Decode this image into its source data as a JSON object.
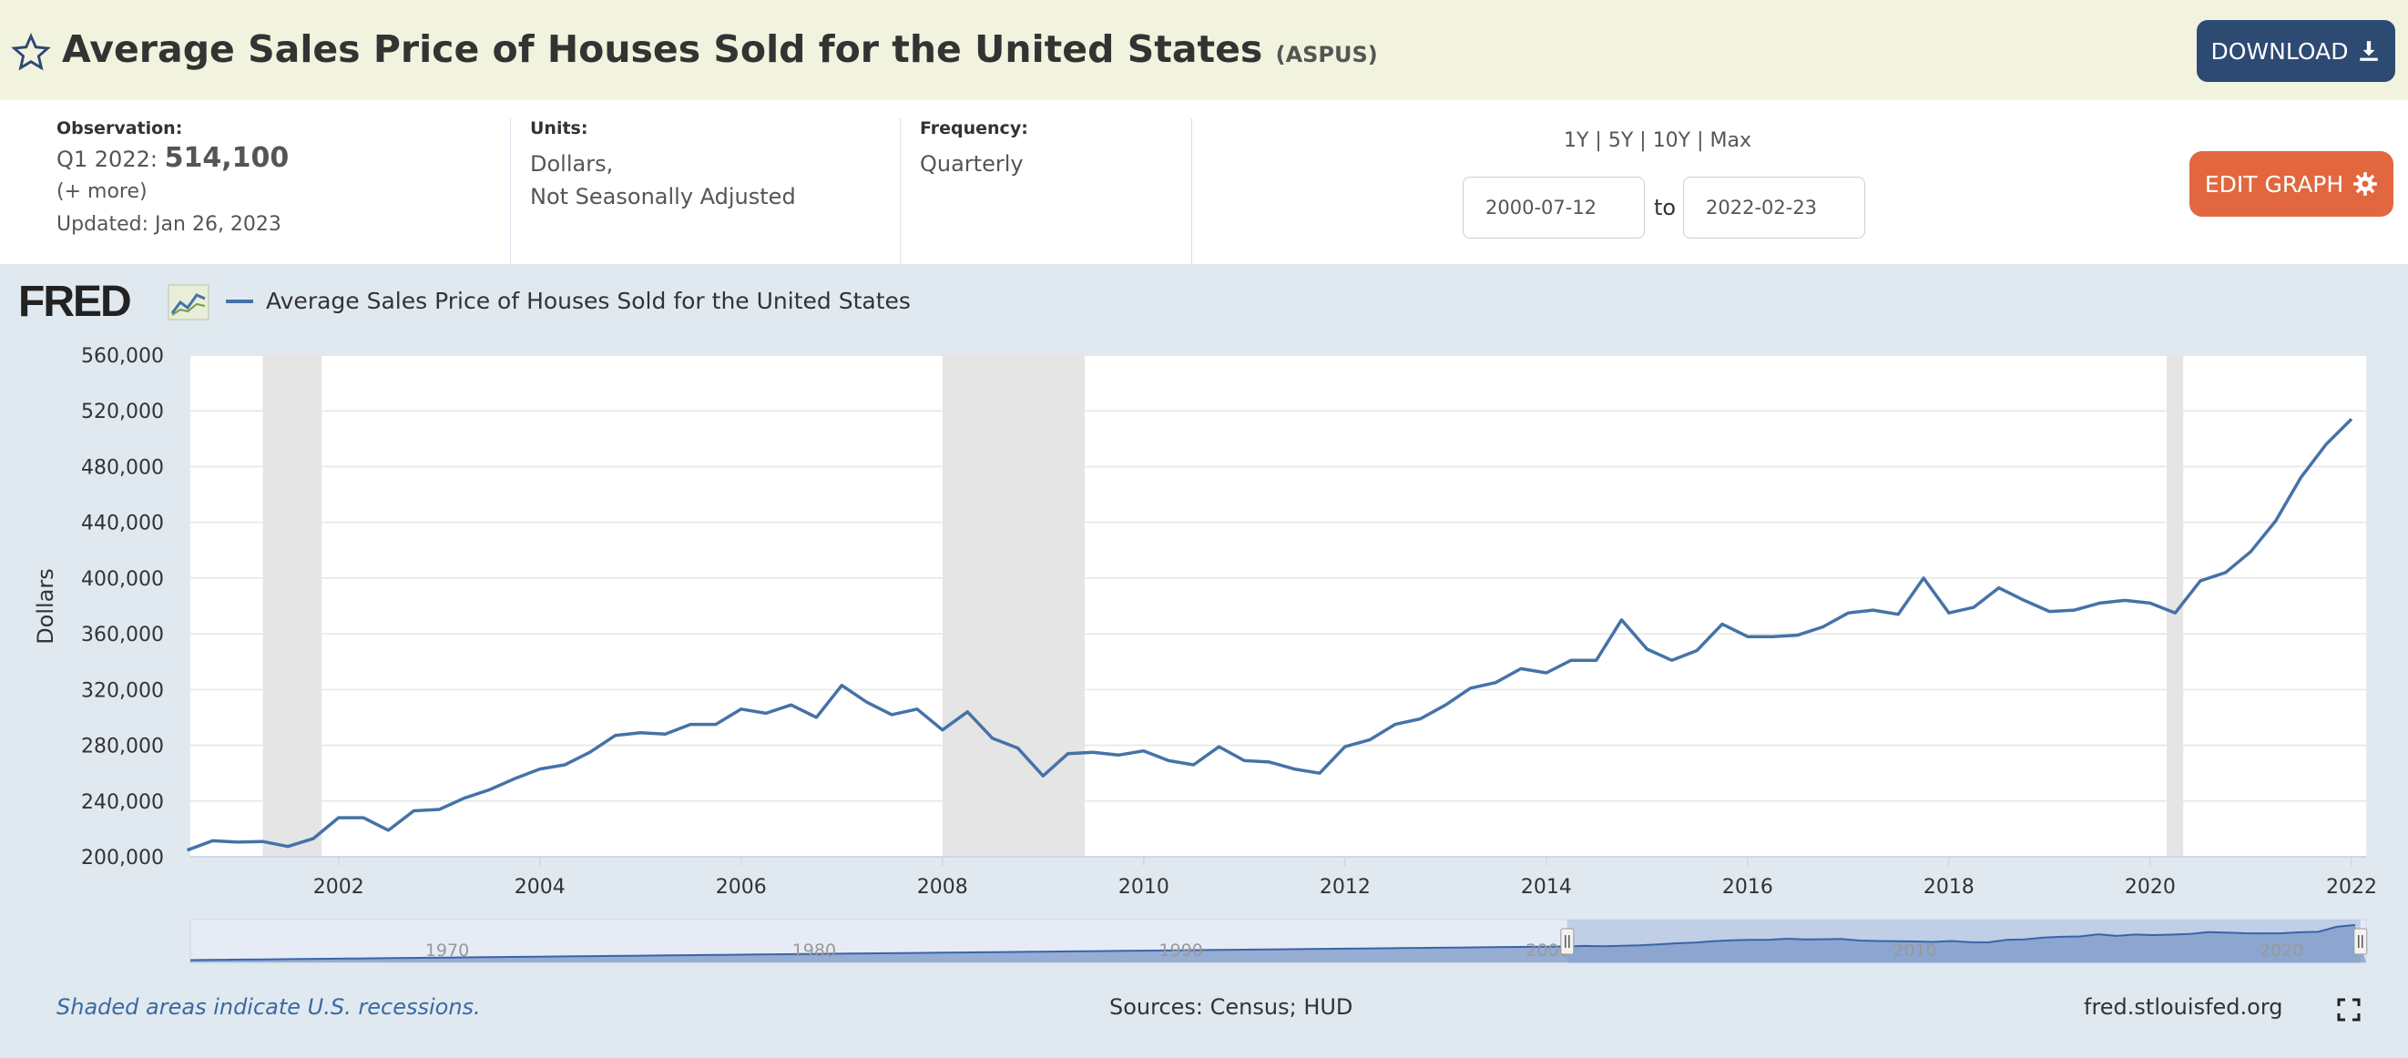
{
  "header": {
    "title": "Average Sales Price of Houses Sold for the United States",
    "series_code": "(ASPUS)",
    "download_label": "DOWNLOAD"
  },
  "info": {
    "observation_label": "Observation:",
    "observation_period": "Q1 2022:",
    "observation_value": "514,100",
    "more_label": "(+ more)",
    "updated": "Updated: Jan 26, 2023",
    "units_label": "Units:",
    "units_line1": "Dollars,",
    "units_line2": "Not Seasonally Adjusted",
    "frequency_label": "Frequency:",
    "frequency_value": "Quarterly",
    "range_links": [
      "1Y",
      "5Y",
      "10Y",
      "Max"
    ],
    "start_date": "2000-07-12",
    "to_label": "to",
    "end_date": "2022-02-23",
    "edit_label": "EDIT GRAPH"
  },
  "legend": {
    "logo": "FRED",
    "series_name": "Average Sales Price of Houses Sold for the United States",
    "series_color": "#4572a7"
  },
  "footer": {
    "recession_note": "Shaded areas indicate U.S. recessions.",
    "sources": "Sources: Census; HUD",
    "site": "fred.stlouisfed.org"
  },
  "chart_data": {
    "type": "line",
    "ylabel": "Dollars",
    "ylim": [
      200000,
      560000
    ],
    "yticks": [
      200000,
      240000,
      280000,
      320000,
      360000,
      400000,
      440000,
      480000,
      520000,
      560000
    ],
    "ytick_labels": [
      "200,000",
      "240,000",
      "280,000",
      "320,000",
      "360,000",
      "400,000",
      "440,000",
      "480,000",
      "520,000",
      "560,000"
    ],
    "xlim": [
      "2000-07-12",
      "2022-02-23"
    ],
    "xticks": [
      "2002",
      "2004",
      "2006",
      "2008",
      "2010",
      "2012",
      "2014",
      "2016",
      "2018",
      "2020",
      "2022"
    ],
    "recessions": [
      [
        "2001-04-01",
        "2001-11-01"
      ],
      [
        "2008-01-01",
        "2009-06-01"
      ],
      [
        "2020-03-01",
        "2020-04-30"
      ]
    ],
    "recession_color": "#e5e5e5",
    "grid": true,
    "series": [
      {
        "name": "Average Sales Price of Houses Sold for the United States",
        "color": "#4572a7",
        "x": [
          "2000-07-01",
          "2000-10-01",
          "2001-01-01",
          "2001-04-01",
          "2001-07-01",
          "2001-10-01",
          "2002-01-01",
          "2002-04-01",
          "2002-07-01",
          "2002-10-01",
          "2003-01-01",
          "2003-04-01",
          "2003-07-01",
          "2003-10-01",
          "2004-01-01",
          "2004-04-01",
          "2004-07-01",
          "2004-10-01",
          "2005-01-01",
          "2005-04-01",
          "2005-07-01",
          "2005-10-01",
          "2006-01-01",
          "2006-04-01",
          "2006-07-01",
          "2006-10-01",
          "2007-01-01",
          "2007-04-01",
          "2007-07-01",
          "2007-10-01",
          "2008-01-01",
          "2008-04-01",
          "2008-07-01",
          "2008-10-01",
          "2009-01-01",
          "2009-04-01",
          "2009-07-01",
          "2009-10-01",
          "2010-01-01",
          "2010-04-01",
          "2010-07-01",
          "2010-10-01",
          "2011-01-01",
          "2011-04-01",
          "2011-07-01",
          "2011-10-01",
          "2012-01-01",
          "2012-04-01",
          "2012-07-01",
          "2012-10-01",
          "2013-01-01",
          "2013-04-01",
          "2013-07-01",
          "2013-10-01",
          "2014-01-01",
          "2014-04-01",
          "2014-07-01",
          "2014-10-01",
          "2015-01-01",
          "2015-04-01",
          "2015-07-01",
          "2015-10-01",
          "2016-01-01",
          "2016-04-01",
          "2016-07-01",
          "2016-10-01",
          "2017-01-01",
          "2017-04-01",
          "2017-07-01",
          "2017-10-01",
          "2018-01-01",
          "2018-04-01",
          "2018-07-01",
          "2018-10-01",
          "2019-01-01",
          "2019-04-01",
          "2019-07-01",
          "2019-10-01",
          "2020-01-01",
          "2020-04-01",
          "2020-07-01",
          "2020-10-01",
          "2021-01-01",
          "2021-04-01",
          "2021-07-01",
          "2021-10-01",
          "2022-01-01"
        ],
        "values": [
          204800,
          211500,
          210500,
          211000,
          207400,
          213000,
          228000,
          228000,
          219000,
          233000,
          234000,
          242000,
          248000,
          256000,
          263000,
          266000,
          275000,
          287000,
          289000,
          288000,
          295000,
          295000,
          306000,
          303000,
          309000,
          300000,
          323000,
          311000,
          302000,
          306000,
          291000,
          304000,
          285000,
          278000,
          258000,
          274000,
          275000,
          273000,
          276000,
          269000,
          266000,
          279000,
          269000,
          268000,
          263000,
          260000,
          279000,
          284000,
          295000,
          299000,
          309000,
          321000,
          325000,
          335000,
          332000,
          341000,
          341000,
          370000,
          349000,
          341000,
          348000,
          367000,
          358000,
          358000,
          359000,
          365000,
          375000,
          377000,
          374000,
          400000,
          375000,
          379000,
          393000,
          384000,
          376000,
          377000,
          382000,
          384000,
          382000,
          375000,
          398000,
          404000,
          419000,
          441000,
          472000,
          496000,
          514100
        ]
      }
    ]
  },
  "navigator": {
    "tick_labels": [
      "1970",
      "1980",
      "1990",
      "2000",
      "2010",
      "2020"
    ],
    "selection_start": "2000-07-12",
    "selection_end": "2022-02-23"
  }
}
